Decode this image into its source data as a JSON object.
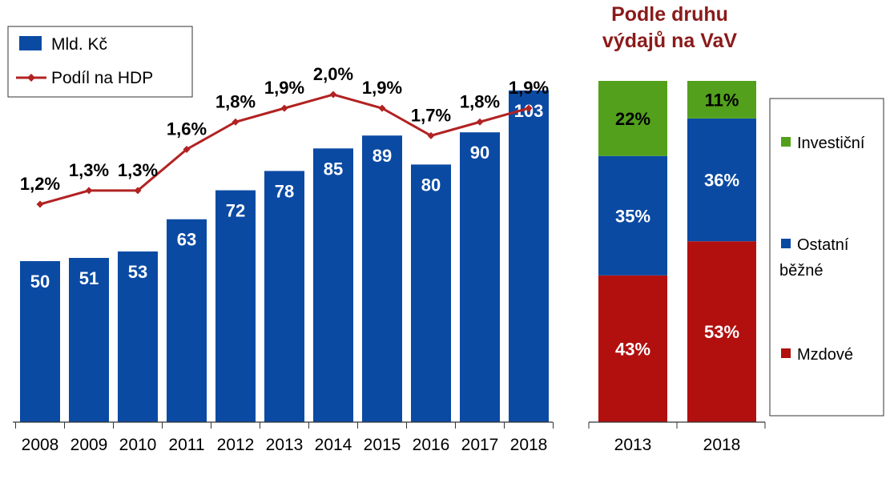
{
  "chart_data": [
    {
      "type": "bar",
      "categories": [
        "2008",
        "2009",
        "2010",
        "2011",
        "2012",
        "2013",
        "2014",
        "2015",
        "2016",
        "2017",
        "2018"
      ],
      "series": [
        {
          "name": "Mld. Kč",
          "type": "bar",
          "values": [
            50,
            51,
            53,
            63,
            72,
            78,
            85,
            89,
            80,
            90,
            103
          ],
          "labels": [
            "50",
            "51",
            "53",
            "63",
            "72",
            "78",
            "85",
            "89",
            "80",
            "90",
            "103"
          ],
          "color": "#0a4aa3"
        },
        {
          "name": "Podíl na HDP",
          "type": "line",
          "values": [
            1.2,
            1.3,
            1.3,
            1.6,
            1.8,
            1.9,
            2.0,
            1.9,
            1.7,
            1.8,
            1.9
          ],
          "labels": [
            "1,2%",
            "1,3%",
            "1,3%",
            "1,6%",
            "1,8%",
            "1,9%",
            "2,0%",
            "1,9%",
            "1,7%",
            "1,8%",
            "1,9%"
          ],
          "color": "#b22222"
        }
      ],
      "legend_position": "top-left",
      "grid": false
    },
    {
      "type": "stacked-bar",
      "title_lines": [
        "Podle druhu",
        "výdajů na VaV"
      ],
      "title_color": "#8b1a1a",
      "categories": [
        "2013",
        "2018"
      ],
      "series": [
        {
          "name": "Mzdové",
          "values": [
            43,
            53
          ],
          "labels": [
            "43%",
            "53%"
          ],
          "color": "#b20f0f"
        },
        {
          "name": "Ostatní běžné",
          "name_lines": [
            "Ostatní",
            "běžné"
          ],
          "values": [
            35,
            36
          ],
          "labels": [
            "35%",
            "36%"
          ],
          "color": "#0a4aa3"
        },
        {
          "name": "Investiční",
          "values": [
            22,
            11
          ],
          "labels": [
            "22%",
            "11%"
          ],
          "color": "#52a01c"
        }
      ],
      "legend_position": "right",
      "grid": false
    }
  ]
}
